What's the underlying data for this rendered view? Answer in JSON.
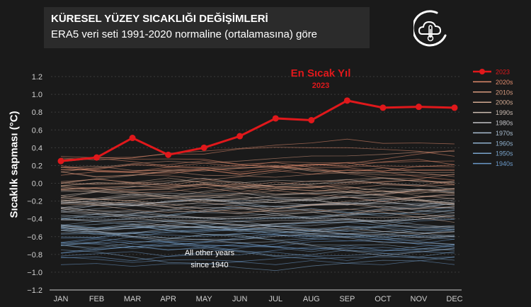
{
  "header": {
    "title": "KÜRESEL YÜZEY SICAKLIĞI DEĞİŞİMLERİ",
    "subtitle": "ERA5 veri seti 1991-2020 normaline (ortalamasına) göre"
  },
  "chart_data": {
    "type": "line",
    "title": "KÜRESEL YÜZEY SICAKLIĞI DEĞİŞİMLERİ",
    "subtitle": "ERA5 veri seti 1991-2020 normaline (ortalamasına) göre",
    "xlabel": "",
    "ylabel": "Sıcaklık sapması (°C)",
    "categories": [
      "JAN",
      "FEB",
      "MAR",
      "APR",
      "MAY",
      "JUN",
      "JUL",
      "AUG",
      "SEP",
      "OCT",
      "NOV",
      "DEC"
    ],
    "ylim": [
      -1.2,
      1.2
    ],
    "yticks": [
      -1.2,
      -1.0,
      -0.8,
      -0.6,
      -0.4,
      -0.2,
      0.0,
      0.2,
      0.4,
      0.6,
      0.8,
      1.0,
      1.2
    ],
    "ytick_labels": [
      "−1.2",
      "−1.0",
      "−0.8",
      "−0.6",
      "−0.4",
      "−0.2",
      "0.0",
      "0.2",
      "0.4",
      "0.6",
      "0.8",
      "1.0",
      "1.2"
    ],
    "grid": true,
    "legend_position": "top-right",
    "series": [
      {
        "name": "2023",
        "color": "#e0181b",
        "values": [
          0.25,
          0.29,
          0.51,
          0.32,
          0.4,
          0.53,
          0.73,
          0.71,
          0.93,
          0.85,
          0.86,
          0.85
        ]
      }
    ],
    "background_decades": [
      {
        "name": "2020s",
        "color": "#e08a6c",
        "start": 0.2,
        "spread": 0.12
      },
      {
        "name": "2010s",
        "color": "#d79a7e",
        "start": 0.05,
        "spread": 0.12
      },
      {
        "name": "2000s",
        "color": "#d2aa92",
        "start": -0.1,
        "spread": 0.12
      },
      {
        "name": "1990s",
        "color": "#cbbcb2",
        "start": -0.22,
        "spread": 0.12
      },
      {
        "name": "1980s",
        "color": "#c2c2c6",
        "start": -0.33,
        "spread": 0.12
      },
      {
        "name": "1970s",
        "color": "#a9bdd0",
        "start": -0.45,
        "spread": 0.12
      },
      {
        "name": "1960s",
        "color": "#8fb0cd",
        "start": -0.54,
        "spread": 0.12
      },
      {
        "name": "1950s",
        "color": "#7aa4cc",
        "start": -0.62,
        "spread": 0.14
      },
      {
        "name": "1940s",
        "color": "#6a98c8",
        "start": -0.72,
        "spread": 0.16
      }
    ],
    "annotations": {
      "hottest_title": "En Sıcak Yıl",
      "hottest_year": "2023",
      "others_line1": "All other years",
      "others_line2": "since 1940"
    }
  },
  "colors": {
    "background": "#1a1a1a",
    "title_box": "#2b2b2b",
    "highlight": "#e0181b",
    "text": "#ffffff",
    "grid": "#3a3a3a"
  },
  "icons": {
    "logo": "cloud-thermometer-moon-icon"
  }
}
